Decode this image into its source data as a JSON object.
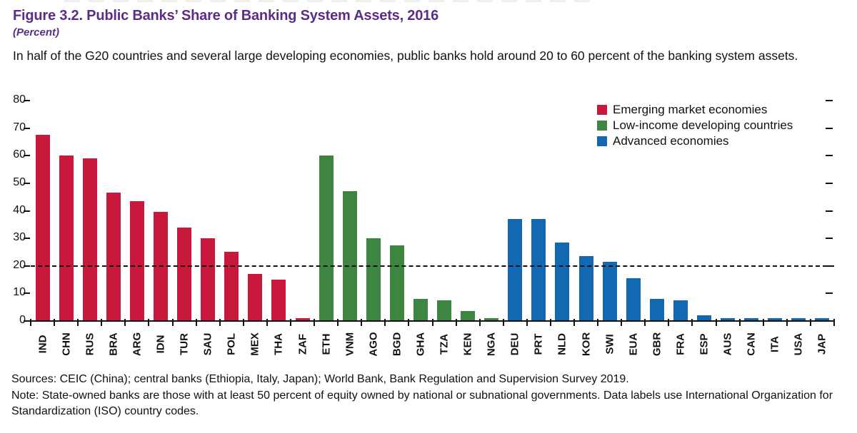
{
  "figure": {
    "title": "Figure 3.2. Public Banks’ Share of Banking System Assets, 2016",
    "unit_label": "(Percent)",
    "description": "In half of the G20 countries and several large developing economies, public banks hold around 20 to 60 percent of the banking system assets.",
    "sources_line": "Sources: CEIC (China); central banks (Ethiopia, Italy, Japan); World Bank, Bank Regulation and Supervision Survey 2019.",
    "note_line": "Note: State-owned banks are those with at least 50 percent of equity owned by national or subnational governments. Data labels use International Organization for Standardization (ISO) country codes."
  },
  "colors": {
    "title_purple": "#5C2D87",
    "emerging_red": "#C8193C",
    "low_income_green": "#3F8542",
    "advanced_blue": "#1268B1",
    "axis_black": "#111111"
  },
  "chart_data": {
    "type": "bar",
    "title": "Public Banks’ Share of Banking System Assets, 2016",
    "xlabel": "",
    "ylabel": "Percent",
    "ylim": [
      0,
      80
    ],
    "ytick_step": 10,
    "yticks": [
      0,
      10,
      20,
      30,
      40,
      50,
      60,
      70,
      80
    ],
    "reference_line_y": 20,
    "grid": false,
    "legend_position": "top-right",
    "groups": [
      {
        "name": "Emerging market economies",
        "color": "#C8193C"
      },
      {
        "name": "Low-income developing countries",
        "color": "#3F8542"
      },
      {
        "name": "Advanced economies",
        "color": "#1268B1"
      }
    ],
    "bars": [
      {
        "label": "IND",
        "value": 67.5,
        "group": 0
      },
      {
        "label": "CHN",
        "value": 60,
        "group": 0
      },
      {
        "label": "RUS",
        "value": 59,
        "group": 0
      },
      {
        "label": "BRA",
        "value": 46.5,
        "group": 0
      },
      {
        "label": "ARG",
        "value": 43.5,
        "group": 0
      },
      {
        "label": "IDN",
        "value": 39.5,
        "group": 0
      },
      {
        "label": "TUR",
        "value": 34,
        "group": 0
      },
      {
        "label": "SAU",
        "value": 30,
        "group": 0
      },
      {
        "label": "POL",
        "value": 25,
        "group": 0
      },
      {
        "label": "MEX",
        "value": 17,
        "group": 0
      },
      {
        "label": "THA",
        "value": 15,
        "group": 0
      },
      {
        "label": "ZAF",
        "value": 1,
        "group": 0
      },
      {
        "label": "ETH",
        "value": 60,
        "group": 1
      },
      {
        "label": "VNM",
        "value": 47,
        "group": 1
      },
      {
        "label": "AGO",
        "value": 30,
        "group": 1
      },
      {
        "label": "BGD",
        "value": 27.5,
        "group": 1
      },
      {
        "label": "GHA",
        "value": 8,
        "group": 1
      },
      {
        "label": "TZA",
        "value": 7.5,
        "group": 1
      },
      {
        "label": "KEN",
        "value": 3.5,
        "group": 1
      },
      {
        "label": "NGA",
        "value": 1,
        "group": 1
      },
      {
        "label": "DEU",
        "value": 37,
        "group": 2
      },
      {
        "label": "PRT",
        "value": 37,
        "group": 2
      },
      {
        "label": "NLD",
        "value": 28.5,
        "group": 2
      },
      {
        "label": "KOR",
        "value": 23.5,
        "group": 2
      },
      {
        "label": "SWI",
        "value": 21.5,
        "group": 2
      },
      {
        "label": "EUA",
        "value": 15.5,
        "group": 2
      },
      {
        "label": "GBR",
        "value": 8,
        "group": 2
      },
      {
        "label": "FRA",
        "value": 7.5,
        "group": 2
      },
      {
        "label": "ESP",
        "value": 2,
        "group": 2
      },
      {
        "label": "AUS",
        "value": 1,
        "group": 2
      },
      {
        "label": "CAN",
        "value": 1,
        "group": 2
      },
      {
        "label": "ITA",
        "value": 1,
        "group": 2
      },
      {
        "label": "USA",
        "value": 1,
        "group": 2
      },
      {
        "label": "JAP",
        "value": 1,
        "group": 2
      }
    ]
  }
}
